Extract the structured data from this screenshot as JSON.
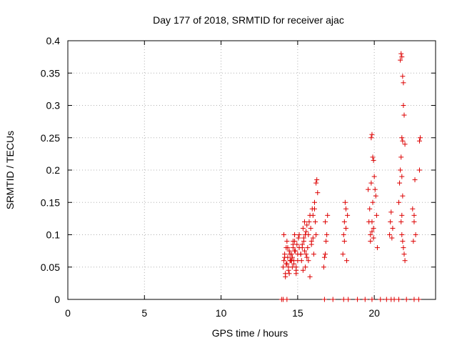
{
  "chart_data": {
    "type": "scatter",
    "title": "Day 177 of 2018, SRMTID for receiver ajac",
    "xlabel": "GPS time / hours",
    "ylabel": "SRMTID / TECUs",
    "xlim": [
      0,
      24
    ],
    "ylim": [
      0,
      0.4
    ],
    "x_ticks": [
      "0",
      "5",
      "10",
      "15",
      "20"
    ],
    "y_ticks": [
      "0",
      "0.05",
      "0.1",
      "0.15",
      "0.2",
      "0.25",
      "0.3",
      "0.35",
      "0.4"
    ],
    "grid": true,
    "marker": "+",
    "color": "#dd0000",
    "x": [
      13.95,
      14.05,
      14.3,
      16.75,
      17.3,
      18.0,
      18.3,
      18.9,
      19.4,
      19.85,
      20.4,
      20.8,
      21.1,
      21.3,
      21.6,
      22.1,
      22.6,
      22.9,
      14.05,
      14.1,
      14.15,
      14.2,
      14.25,
      14.3,
      14.35,
      14.4,
      14.45,
      14.5,
      14.1,
      14.2,
      14.3,
      14.4,
      14.5,
      14.15,
      14.25,
      14.35,
      14.45,
      14.55,
      14.6,
      14.65,
      14.7,
      14.75,
      14.8,
      14.6,
      14.7,
      14.8,
      14.9,
      15.0,
      15.1,
      14.65,
      14.75,
      14.85,
      14.95,
      15.05,
      14.9,
      15.0,
      15.1,
      15.2,
      14.7,
      14.8,
      14.9,
      15.2,
      15.3,
      15.4,
      15.5,
      15.25,
      15.35,
      15.45,
      15.55,
      15.3,
      15.4,
      15.5,
      15.6,
      15.35,
      15.45,
      15.55,
      15.6,
      15.65,
      15.7,
      15.75,
      15.8,
      15.85,
      15.9,
      15.95,
      16.0,
      16.05,
      16.1,
      16.15,
      16.2,
      15.7,
      15.8,
      15.9,
      16.0,
      16.1,
      16.2,
      16.25,
      16.3,
      16.7,
      16.8,
      16.9,
      16.75,
      16.85,
      16.95,
      16.8,
      17.95,
      18.0,
      18.05,
      18.1,
      18.15,
      18.2,
      18.25,
      18.05,
      18.15,
      19.6,
      19.65,
      19.7,
      19.75,
      19.8,
      19.85,
      19.9,
      19.95,
      20.0,
      20.05,
      20.1,
      20.15,
      20.2,
      19.75,
      19.85,
      19.95,
      19.8,
      19.9,
      19.85,
      19.95,
      21.0,
      21.05,
      21.1,
      21.15,
      21.2,
      21.6,
      21.65,
      21.7,
      21.75,
      21.8,
      21.85,
      21.9,
      21.95,
      22.0,
      21.7,
      21.75,
      21.8,
      21.85,
      21.9,
      21.8,
      21.85,
      21.75,
      21.8,
      21.85,
      21.9,
      21.95,
      22.0,
      21.8,
      22.5,
      22.6,
      22.7,
      22.55,
      22.65,
      22.6,
      22.95,
      23.0,
      22.95
    ],
    "y": [
      0,
      0,
      0,
      0,
      0,
      0,
      0,
      0,
      0,
      0,
      0,
      0,
      0,
      0,
      0,
      0,
      0,
      0,
      0.05,
      0.06,
      0.07,
      0.04,
      0.08,
      0.055,
      0.065,
      0.045,
      0.075,
      0.06,
      0.1,
      0.035,
      0.09,
      0.05,
      0.07,
      0.065,
      0.055,
      0.08,
      0.04,
      0.06,
      0.07,
      0.05,
      0.085,
      0.06,
      0.075,
      0.06,
      0.08,
      0.09,
      0.05,
      0.07,
      0.1,
      0.065,
      0.055,
      0.075,
      0.085,
      0.095,
      0.045,
      0.06,
      0.08,
      0.07,
      0.09,
      0.1,
      0.04,
      0.07,
      0.08,
      0.09,
      0.1,
      0.06,
      0.11,
      0.12,
      0.07,
      0.085,
      0.095,
      0.05,
      0.065,
      0.045,
      0.075,
      0.105,
      0.115,
      0.08,
      0.1,
      0.12,
      0.13,
      0.11,
      0.09,
      0.14,
      0.13,
      0.07,
      0.15,
      0.12,
      0.1,
      0.06,
      0.035,
      0.085,
      0.095,
      0.14,
      0.18,
      0.185,
      0.165,
      0.05,
      0.07,
      0.1,
      0.065,
      0.09,
      0.13,
      0.12,
      0.07,
      0.1,
      0.12,
      0.15,
      0.11,
      0.06,
      0.13,
      0.09,
      0.14,
      0.17,
      0.12,
      0.14,
      0.1,
      0.25,
      0.255,
      0.22,
      0.215,
      0.19,
      0.17,
      0.16,
      0.13,
      0.08,
      0.09,
      0.12,
      0.11,
      0.18,
      0.15,
      0.105,
      0.095,
      0.1,
      0.12,
      0.135,
      0.095,
      0.11,
      0.15,
      0.18,
      0.2,
      0.22,
      0.25,
      0.245,
      0.3,
      0.285,
      0.24,
      0.37,
      0.38,
      0.375,
      0.345,
      0.335,
      0.19,
      0.16,
      0.12,
      0.1,
      0.09,
      0.08,
      0.07,
      0.06,
      0.13,
      0.14,
      0.12,
      0.1,
      0.09,
      0.185,
      0.13,
      0.2,
      0.25,
      0.245
    ]
  }
}
